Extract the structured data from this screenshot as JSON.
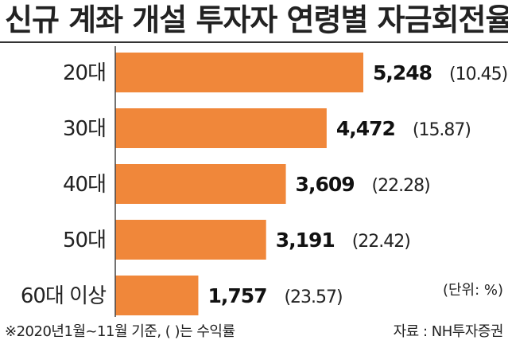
{
  "chart_data": {
    "type": "bar",
    "orientation": "horizontal",
    "title": "신규 계좌 개설 투자자 연령별 자금회전율",
    "categories": [
      "20대",
      "30대",
      "40대",
      "50대",
      "60대 이상"
    ],
    "values": [
      5248,
      4472,
      3609,
      3191,
      1757
    ],
    "value_labels": [
      "5,248",
      "4,472",
      "3,609",
      "3,191",
      "1,757"
    ],
    "secondary_values": [
      10.45,
      15.87,
      22.28,
      22.42,
      23.57
    ],
    "secondary_labels": [
      "(10.45)",
      "(15.87)",
      "(22.28)",
      "(22.42)",
      "(23.57)"
    ],
    "xlim": [
      0,
      5248
    ],
    "grid": false,
    "unit_note": "(단위: %)",
    "footnote": "※2020년1월~11월 기준, (   )는 수익률",
    "source": "자료 : NH투자증권",
    "colors": {
      "bar": "#f0873a",
      "axis": "#444444",
      "text": "#222222"
    }
  }
}
